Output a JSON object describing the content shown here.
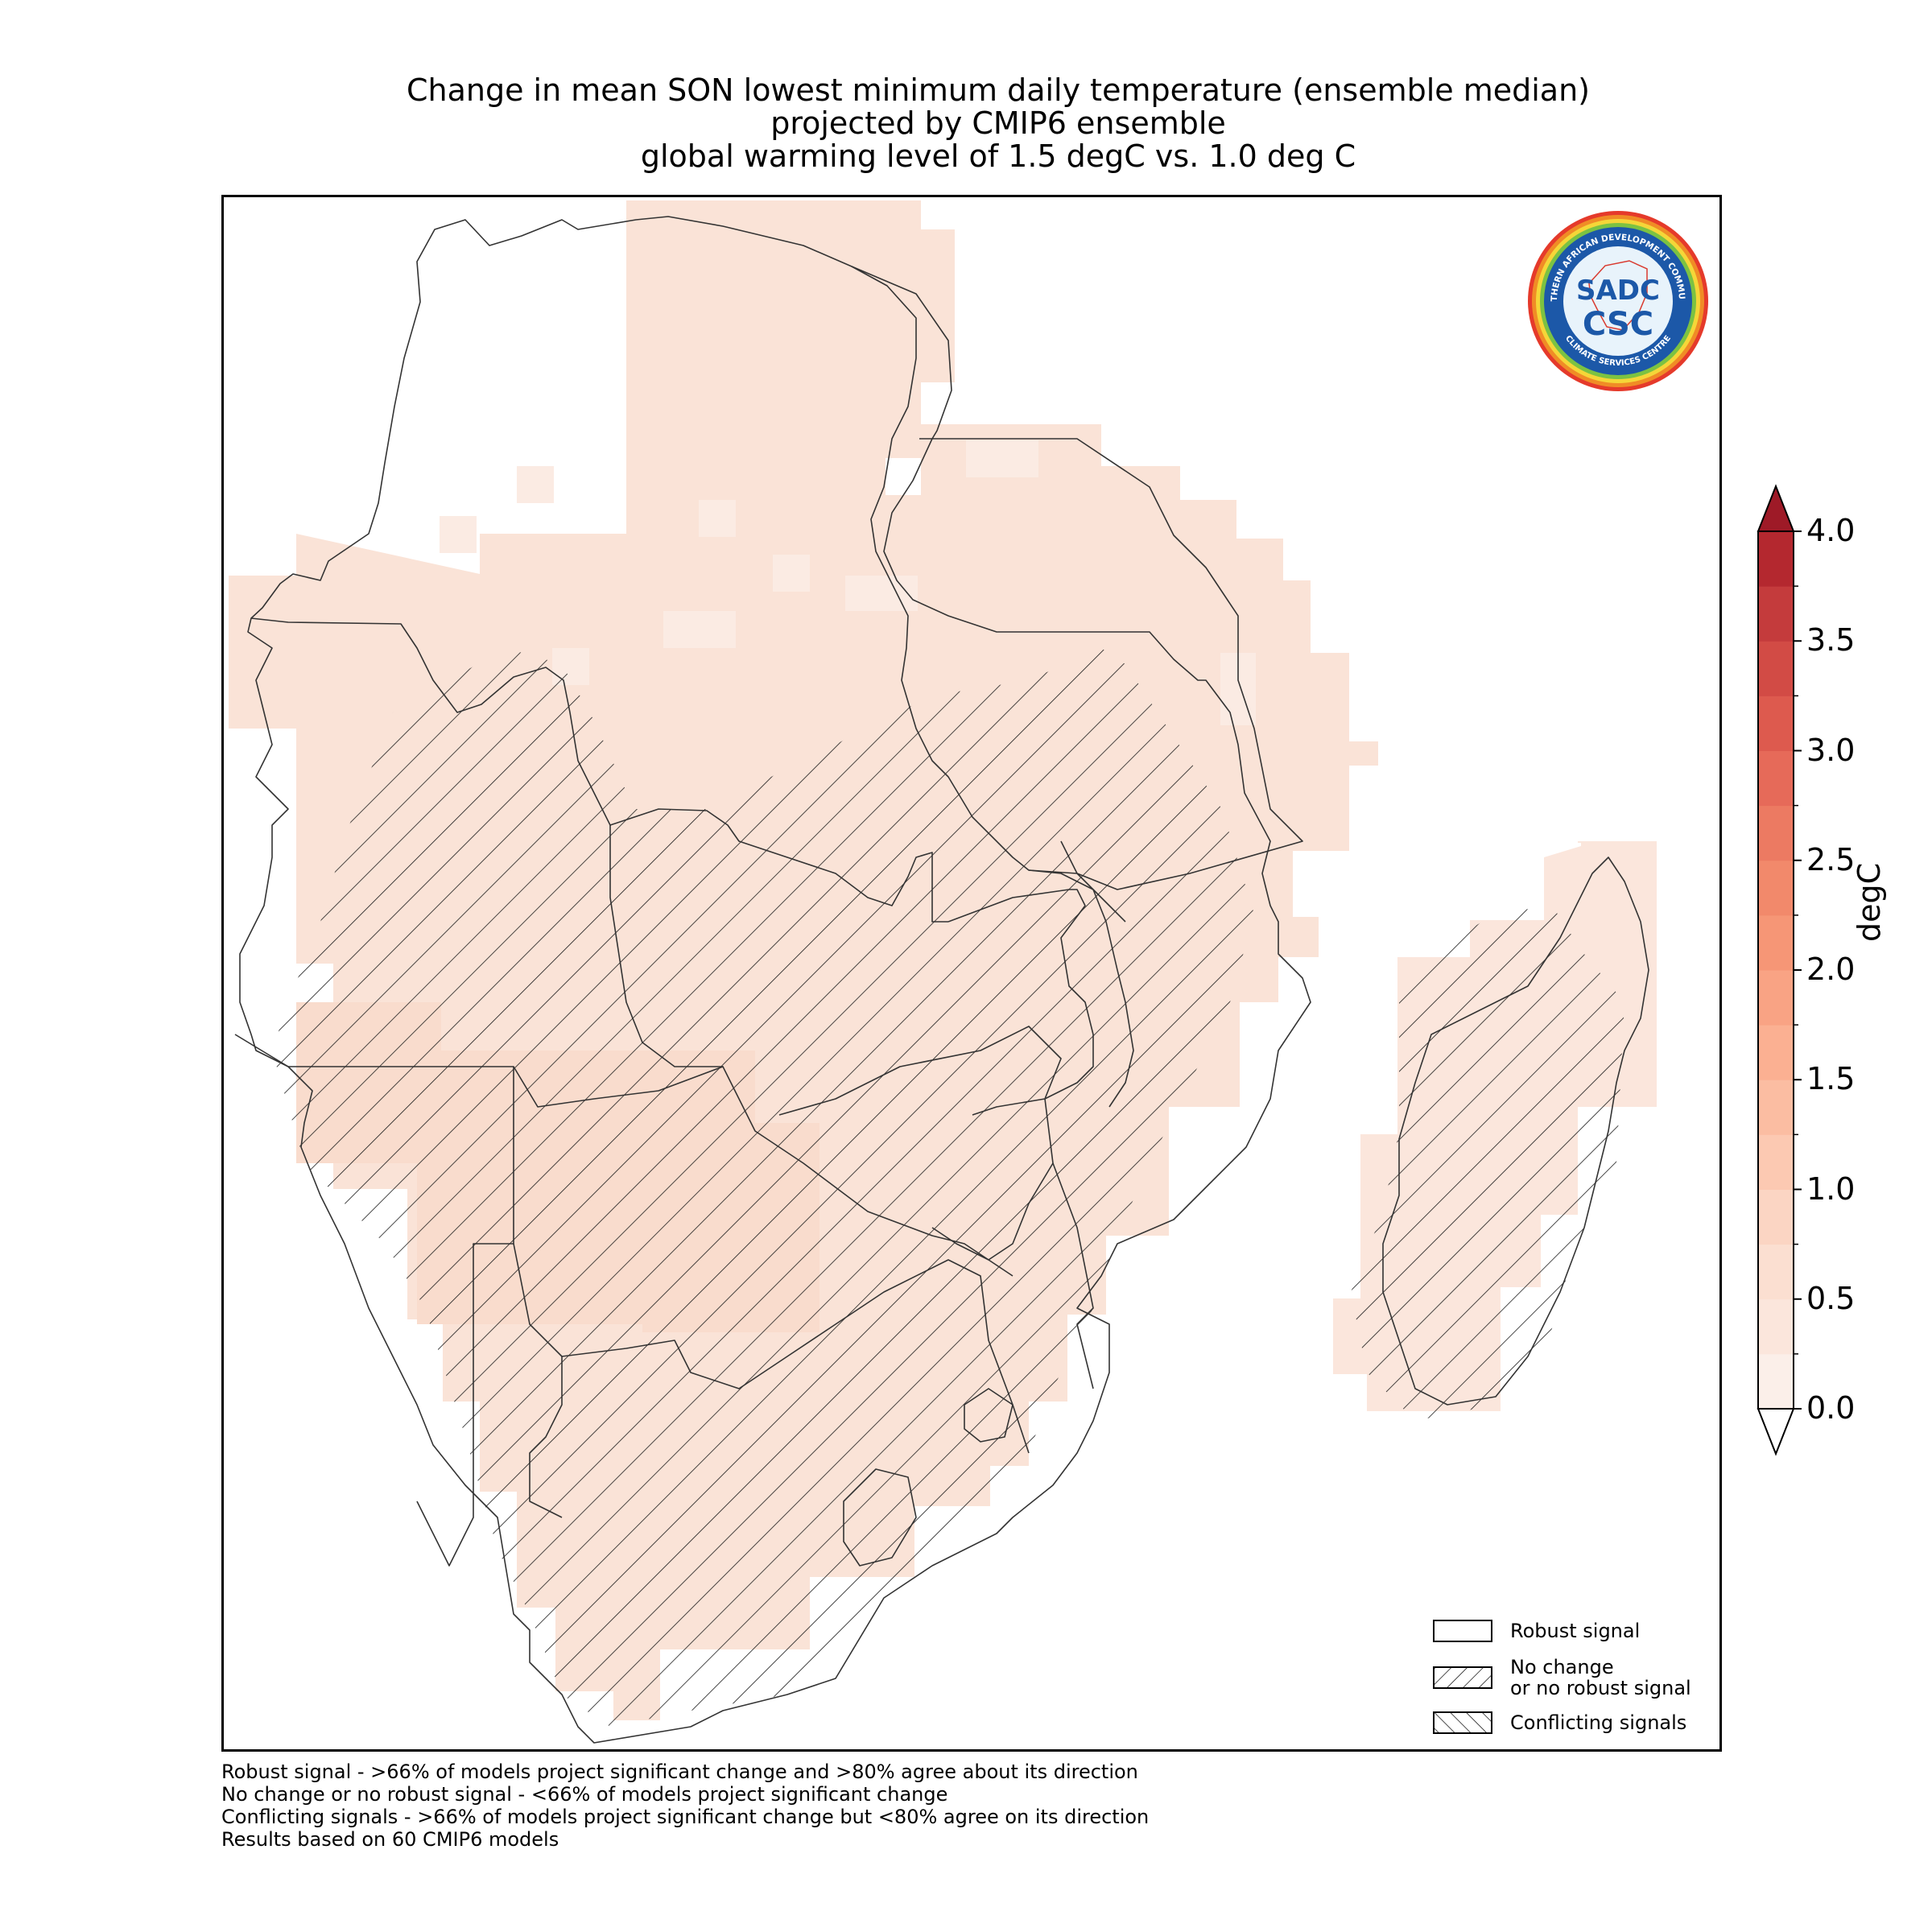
{
  "title": {
    "line1": "Change in mean SON lowest minimum daily temperature (ensemble median)",
    "line2": "projected by CMIP6 ensemble",
    "line3": "global warming level of 1.5 degC vs. 1.0 deg C"
  },
  "colorbar": {
    "label": "degC",
    "ticks": [
      "0.0",
      "0.5",
      "1.0",
      "1.5",
      "2.0",
      "2.5",
      "3.0",
      "3.5",
      "4.0"
    ],
    "range": [
      0.0,
      4.0
    ],
    "extend": "both",
    "colors": [
      "#ffffff",
      "#fbe6dc",
      "#fbd9c8",
      "#fcc7b0",
      "#fbb699",
      "#f9a384",
      "#f48f72",
      "#ec7a62",
      "#e26454",
      "#d54d46",
      "#c6383b",
      "#b4232f",
      "#9e1a27"
    ]
  },
  "legend": {
    "robust": "Robust signal",
    "no_change_line1": "No change",
    "no_change_line2": "or no robust signal",
    "conflicting": "Conflicting signals"
  },
  "footnotes": {
    "line1": "Robust signal - >66% of models project significant change and >80% agree about its direction",
    "line2": "No change or no robust signal - <66% of models project significant change",
    "line3": "Conflicting signals - >66% of models project significant change but <80% agree on its direction",
    "line4": "Results based on 60 CMIP6 models"
  },
  "logo": {
    "top_text": "SOUTHERN AFRICAN DEVELOPMENT COMMUNITY",
    "bottom_text": "CLIMATE SERVICES CENTRE",
    "mark_upper": "SADC",
    "mark_lower": "CSC"
  },
  "map_colors": {
    "base": "#fae3d7",
    "warmer": "#f9dccd",
    "cooler": "#fbebe3",
    "hatch": "#1a1a1a",
    "border": "#333333"
  }
}
